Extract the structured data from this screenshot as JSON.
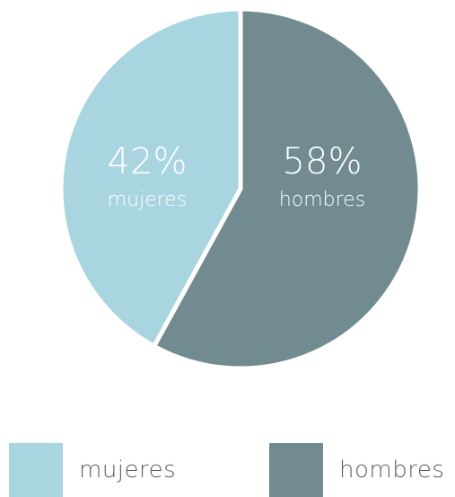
{
  "chart_data": {
    "type": "pie",
    "title": "",
    "slices": [
      {
        "label": "hombres",
        "value": 58,
        "percent_label": "58%",
        "color": "#718b91"
      },
      {
        "label": "mujeres",
        "value": 42,
        "percent_label": "42%",
        "color": "#a8d5df"
      }
    ],
    "legend_placement": "bottom"
  },
  "legend": {
    "items": [
      {
        "label": "mujeres",
        "color": "#a8d5df"
      },
      {
        "label": "hombres",
        "color": "#718b91"
      }
    ]
  }
}
